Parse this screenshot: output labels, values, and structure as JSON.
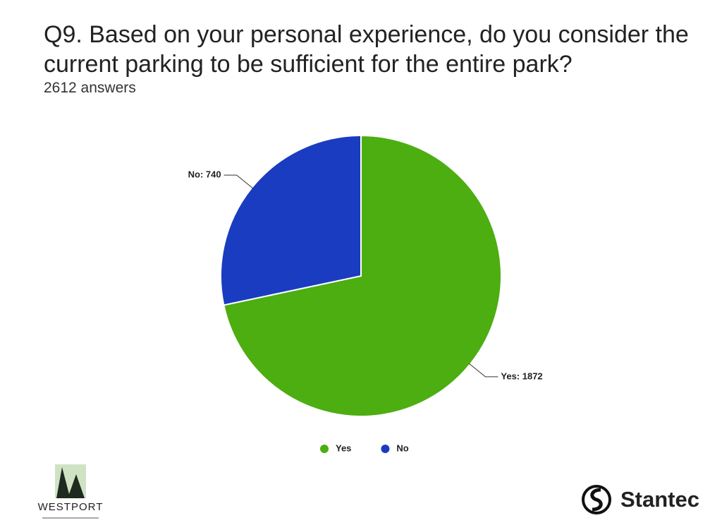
{
  "chart_data": {
    "type": "pie",
    "title": "Q9. Based on your personal experience, do you consider the current parking to be sufficient for the entire park?",
    "subtitle": "2612 answers",
    "categories": [
      "Yes",
      "No"
    ],
    "values": [
      1872,
      740
    ],
    "value_labels": [
      "Yes: 1872",
      "No: 740"
    ],
    "colors": [
      "#4cae10",
      "#1a3cc0"
    ],
    "legend": "bottom"
  },
  "logos": {
    "left": "WESTPORT",
    "right": "Stantec"
  }
}
